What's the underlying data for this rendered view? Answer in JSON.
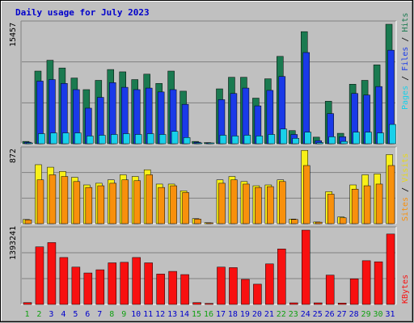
{
  "chart_data": [
    {
      "type": "bar",
      "panel": "hits-files-pages",
      "title": "Daily usage for July 2023",
      "categories": [
        "1",
        "2",
        "3",
        "4",
        "5",
        "6",
        "7",
        "8",
        "9",
        "10",
        "11",
        "12",
        "13",
        "14",
        "15",
        "16",
        "17",
        "18",
        "19",
        "20",
        "21",
        "22",
        "23",
        "24",
        "25",
        "26",
        "27",
        "28",
        "29",
        "30",
        "31"
      ],
      "weekend_days": [
        "1",
        "2",
        "8",
        "9",
        "15",
        "16",
        "22",
        "23",
        "29",
        "30"
      ],
      "ymax_label": "15457",
      "ylim": [
        0,
        15457
      ],
      "series": [
        {
          "name": "Hits",
          "color": "#1a7a50",
          "values": [
            300,
            9400,
            10800,
            9800,
            8500,
            7000,
            8200,
            9600,
            9300,
            8300,
            9000,
            7800,
            9400,
            6800,
            300,
            150,
            7100,
            8600,
            8600,
            5900,
            8400,
            11300,
            1700,
            14500,
            850,
            5500,
            1350,
            7700,
            8200,
            10200,
            15457
          ]
        },
        {
          "name": "Files",
          "color": "#1a3ae8",
          "values": [
            200,
            8100,
            8300,
            7800,
            7000,
            4600,
            6000,
            7900,
            7300,
            7000,
            7200,
            6700,
            7000,
            5100,
            200,
            100,
            5700,
            6500,
            7200,
            4900,
            6900,
            8700,
            1200,
            11800,
            400,
            3900,
            900,
            6500,
            6300,
            7400,
            12100
          ]
        },
        {
          "name": "Pages",
          "color": "#18d0ea",
          "values": [
            60,
            1300,
            1400,
            1400,
            1400,
            1000,
            1100,
            1200,
            1300,
            1200,
            1300,
            1200,
            1600,
            800,
            50,
            30,
            1100,
            1000,
            1100,
            1000,
            1200,
            1900,
            700,
            1500,
            150,
            900,
            300,
            1500,
            1500,
            1400,
            2500
          ]
        }
      ]
    },
    {
      "type": "bar",
      "panel": "visits-sites",
      "categories": [
        "1",
        "2",
        "3",
        "4",
        "5",
        "6",
        "7",
        "8",
        "9",
        "10",
        "11",
        "12",
        "13",
        "14",
        "15",
        "16",
        "17",
        "18",
        "19",
        "20",
        "21",
        "22",
        "23",
        "24",
        "25",
        "26",
        "27",
        "28",
        "29",
        "30",
        "31"
      ],
      "ymax_label": "872",
      "ylim": [
        0,
        872
      ],
      "series": [
        {
          "name": "Visits",
          "color": "#f8f018",
          "values": [
            50,
            700,
            670,
            620,
            550,
            460,
            480,
            520,
            580,
            560,
            640,
            470,
            470,
            390,
            60,
            12,
            520,
            560,
            500,
            450,
            460,
            520,
            55,
            870,
            20,
            380,
            80,
            460,
            580,
            590,
            820
          ]
        },
        {
          "name": "Sites",
          "color": "#f8900c",
          "values": [
            45,
            520,
            580,
            560,
            500,
            430,
            450,
            480,
            520,
            510,
            580,
            430,
            450,
            370,
            55,
            10,
            480,
            520,
            470,
            430,
            440,
            500,
            50,
            690,
            18,
            350,
            70,
            410,
            450,
            470,
            690
          ]
        }
      ]
    },
    {
      "type": "bar",
      "panel": "kbytes",
      "categories": [
        "1",
        "2",
        "3",
        "4",
        "5",
        "6",
        "7",
        "8",
        "9",
        "10",
        "11",
        "12",
        "13",
        "14",
        "15",
        "16",
        "17",
        "18",
        "19",
        "20",
        "21",
        "22",
        "23",
        "24",
        "25",
        "26",
        "27",
        "28",
        "29",
        "30",
        "31"
      ],
      "ymax_label": "1393241",
      "ylim": [
        0,
        1393241
      ],
      "series": [
        {
          "name": "KBytes",
          "color": "#f81010",
          "values": [
            35000,
            1080000,
            1160000,
            880000,
            700000,
            590000,
            650000,
            780000,
            790000,
            880000,
            780000,
            570000,
            620000,
            560000,
            35000,
            20000,
            700000,
            690000,
            470000,
            380000,
            760000,
            1040000,
            30000,
            1393241,
            30000,
            550000,
            25000,
            480000,
            820000,
            800000,
            1320000
          ]
        }
      ]
    }
  ],
  "side_labels": {
    "top": [
      {
        "text": "Pages",
        "color": "#18d0ea"
      },
      {
        "text": " / ",
        "color": "#000000"
      },
      {
        "text": "Files",
        "color": "#1a3ae8"
      },
      {
        "text": " / ",
        "color": "#000000"
      },
      {
        "text": "Hits",
        "color": "#1a7a50"
      }
    ],
    "middle": [
      {
        "text": "Sites",
        "color": "#f8900c"
      },
      {
        "text": " / ",
        "color": "#000000"
      },
      {
        "text": "Visits",
        "color": "#e8d818"
      }
    ],
    "bottom": [
      {
        "text": "KBytes",
        "color": "#f81010"
      }
    ]
  },
  "colors": {
    "background": "#c0c0c0",
    "weekday_label": "#0000cc",
    "weekend_label": "#10a010",
    "bar_outline": "#000000"
  }
}
